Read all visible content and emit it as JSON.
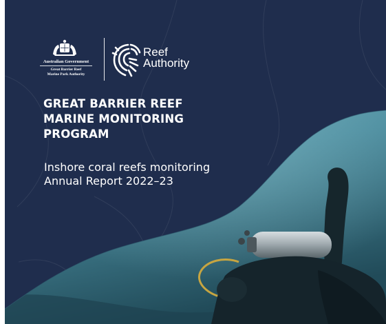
{
  "logos": {
    "government": {
      "name": "Australian Government",
      "agency_line1": "Great Barrier Reef",
      "agency_line2": "Marine Park Authority"
    },
    "reef_authority": {
      "line1": "Reef",
      "line2": "Authority"
    }
  },
  "title": {
    "line1": "GREAT BARRIER REEF",
    "line2": "MARINE MONITORING",
    "line3": "PROGRAM"
  },
  "subtitle": {
    "line1": "Inshore coral reefs monitoring",
    "line2": "Annual Report 2022–23"
  },
  "colors": {
    "navy_background": "#1f2d4d",
    "underwater": "#3d7d90",
    "text": "#ffffff"
  }
}
